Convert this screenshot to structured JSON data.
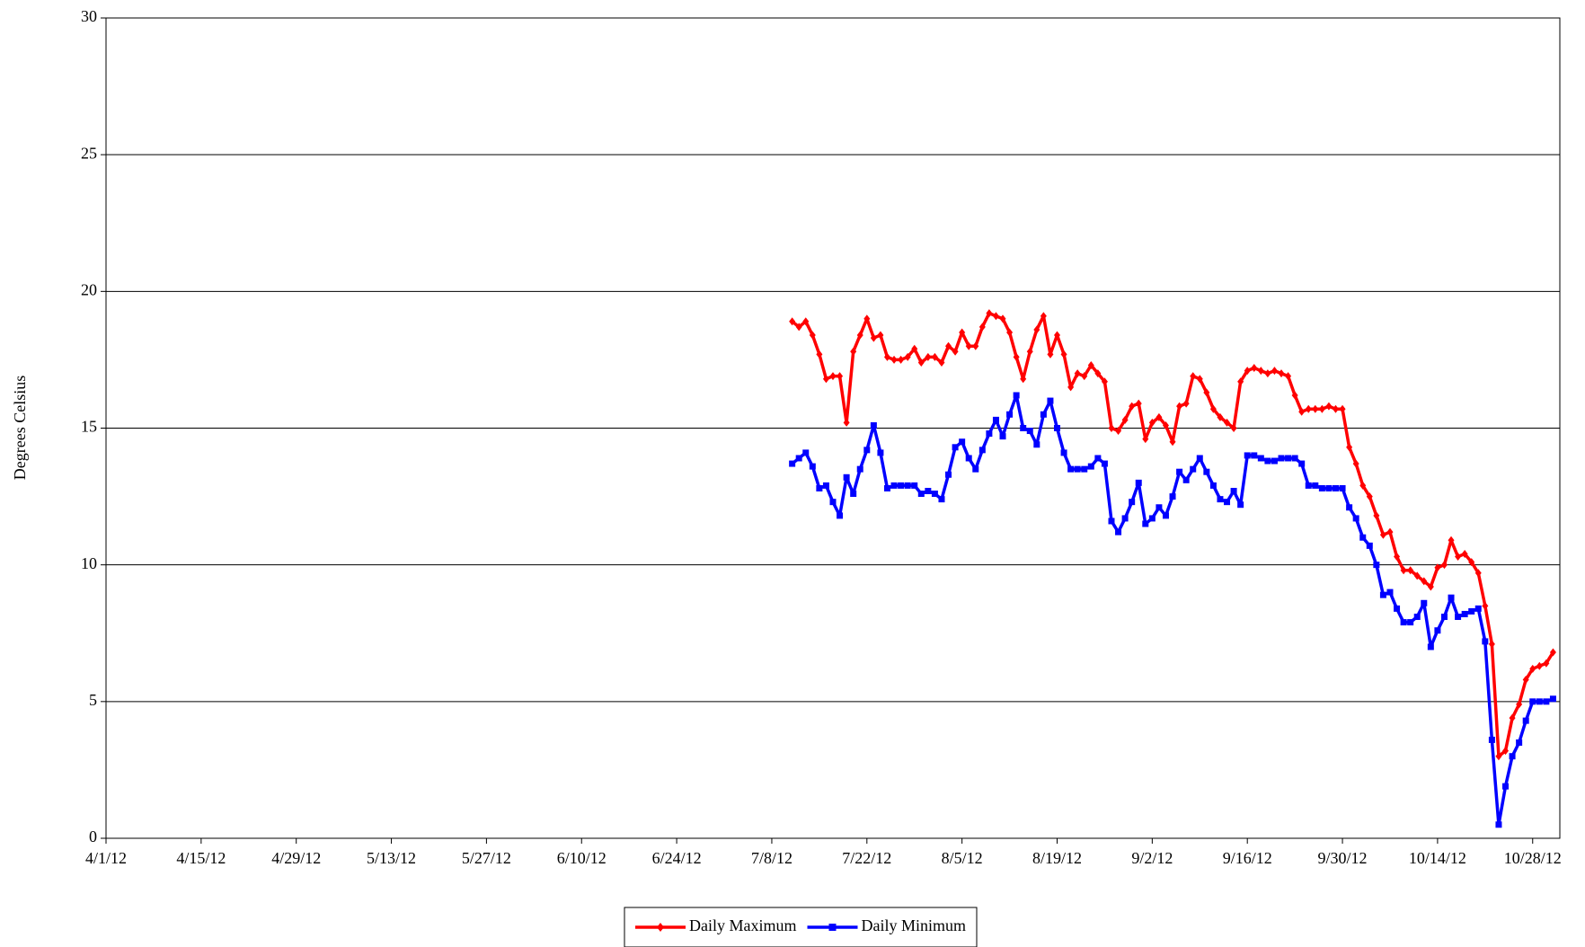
{
  "chart_data": {
    "type": "line",
    "y_label": "Degrees Celsius",
    "x": [
      "7/11/12",
      "7/12/12",
      "7/13/12",
      "7/14/12",
      "7/15/12",
      "7/16/12",
      "7/17/12",
      "7/18/12",
      "7/19/12",
      "7/20/12",
      "7/21/12",
      "7/22/12",
      "7/23/12",
      "7/24/12",
      "7/25/12",
      "7/26/12",
      "7/27/12",
      "7/28/12",
      "7/29/12",
      "7/30/12",
      "7/31/12",
      "8/1/12",
      "8/2/12",
      "8/3/12",
      "8/4/12",
      "8/5/12",
      "8/6/12",
      "8/7/12",
      "8/8/12",
      "8/9/12",
      "8/10/12",
      "8/11/12",
      "8/12/12",
      "8/13/12",
      "8/14/12",
      "8/15/12",
      "8/16/12",
      "8/17/12",
      "8/18/12",
      "8/19/12",
      "8/20/12",
      "8/21/12",
      "8/22/12",
      "8/23/12",
      "8/24/12",
      "8/25/12",
      "8/26/12",
      "8/27/12",
      "8/28/12",
      "8/29/12",
      "8/30/12",
      "8/31/12",
      "9/1/12",
      "9/2/12",
      "9/3/12",
      "9/4/12",
      "9/5/12",
      "9/6/12",
      "9/7/12",
      "9/8/12",
      "9/9/12",
      "9/10/12",
      "9/11/12",
      "9/12/12",
      "9/13/12",
      "9/14/12",
      "9/15/12",
      "9/16/12",
      "9/17/12",
      "9/18/12",
      "9/19/12",
      "9/20/12",
      "9/21/12",
      "9/22/12",
      "9/23/12",
      "9/24/12",
      "9/25/12",
      "9/26/12",
      "9/27/12",
      "9/28/12",
      "9/29/12",
      "9/30/12",
      "10/1/12",
      "10/2/12",
      "10/3/12",
      "10/4/12",
      "10/5/12",
      "10/6/12",
      "10/7/12",
      "10/8/12",
      "10/9/12",
      "10/10/12",
      "10/11/12",
      "10/12/12",
      "10/13/12",
      "10/14/12",
      "10/15/12",
      "10/16/12",
      "10/17/12",
      "10/18/12",
      "10/19/12",
      "10/20/12",
      "10/21/12",
      "10/22/12",
      "10/23/12",
      "10/24/12",
      "10/25/12",
      "10/26/12",
      "10/27/12",
      "10/28/12",
      "10/29/12",
      "10/30/12",
      "10/31/12"
    ],
    "series": [
      {
        "name": "Daily Maximum",
        "color": "#ff0000",
        "marker": "diamond",
        "values": [
          18.9,
          18.7,
          18.9,
          18.4,
          17.7,
          16.8,
          16.9,
          16.9,
          15.2,
          17.8,
          18.4,
          19.0,
          18.3,
          18.4,
          17.6,
          17.5,
          17.5,
          17.6,
          17.9,
          17.4,
          17.6,
          17.6,
          17.4,
          18.0,
          17.8,
          18.5,
          18.0,
          18.0,
          18.7,
          19.2,
          19.1,
          19.0,
          18.5,
          17.6,
          16.8,
          17.8,
          18.6,
          19.1,
          17.7,
          18.4,
          17.7,
          16.5,
          17.0,
          16.9,
          17.3,
          17.0,
          16.7,
          15.0,
          14.9,
          15.3,
          15.8,
          15.9,
          14.6,
          15.2,
          15.4,
          15.1,
          14.5,
          15.8,
          15.9,
          16.9,
          16.8,
          16.3,
          15.7,
          15.4,
          15.2,
          15.0,
          16.7,
          17.1,
          17.2,
          17.1,
          17.0,
          17.1,
          17.0,
          16.9,
          16.2,
          15.6,
          15.7,
          15.7,
          15.7,
          15.8,
          15.7,
          15.7,
          14.3,
          13.7,
          12.9,
          12.5,
          11.8,
          11.1,
          11.2,
          10.3,
          9.8,
          9.8,
          9.6,
          9.4,
          9.2,
          9.9,
          10.0,
          10.9,
          10.3,
          10.4,
          10.1,
          9.7,
          8.5,
          7.1,
          3.0,
          3.2,
          4.4,
          4.9,
          5.8,
          6.2,
          6.3,
          6.4,
          6.8
        ]
      },
      {
        "name": "Daily Minimum",
        "color": "#0000ff",
        "marker": "square",
        "values": [
          13.7,
          13.9,
          14.1,
          13.6,
          12.8,
          12.9,
          12.3,
          11.8,
          13.2,
          12.6,
          13.5,
          14.2,
          15.1,
          14.1,
          12.8,
          12.9,
          12.9,
          12.9,
          12.9,
          12.6,
          12.7,
          12.6,
          12.4,
          13.3,
          14.3,
          14.5,
          13.9,
          13.5,
          14.2,
          14.8,
          15.3,
          14.7,
          15.5,
          16.2,
          15.0,
          14.9,
          14.4,
          15.5,
          16.0,
          15.0,
          14.1,
          13.5,
          13.5,
          13.5,
          13.6,
          13.9,
          13.7,
          11.6,
          11.2,
          11.7,
          12.3,
          13.0,
          11.5,
          11.7,
          12.1,
          11.8,
          12.5,
          13.4,
          13.1,
          13.5,
          13.9,
          13.4,
          12.9,
          12.4,
          12.3,
          12.7,
          12.2,
          14.0,
          14.0,
          13.9,
          13.8,
          13.8,
          13.9,
          13.9,
          13.9,
          13.7,
          12.9,
          12.9,
          12.8,
          12.8,
          12.8,
          12.8,
          12.1,
          11.7,
          11.0,
          10.7,
          10.0,
          8.9,
          9.0,
          8.4,
          7.9,
          7.9,
          8.1,
          8.6,
          7.0,
          7.6,
          8.1,
          8.8,
          8.1,
          8.2,
          8.3,
          8.4,
          7.2,
          3.6,
          0.5,
          1.9,
          3.0,
          3.5,
          4.3,
          5.0,
          5.0,
          5.0,
          5.1
        ]
      }
    ],
    "xlim": [
      "4/1/12",
      "11/1/12"
    ],
    "xticks": [
      "4/1/12",
      "4/15/12",
      "4/29/12",
      "5/13/12",
      "5/27/12",
      "6/10/12",
      "6/24/12",
      "7/8/12",
      "7/22/12",
      "8/5/12",
      "8/19/12",
      "9/2/12",
      "9/16/12",
      "9/30/12",
      "10/14/12",
      "10/28/12"
    ],
    "ylim": [
      0,
      30
    ],
    "yticks": [
      0,
      5,
      10,
      15,
      20,
      25,
      30
    ],
    "grid": true,
    "legend": "bottom"
  }
}
